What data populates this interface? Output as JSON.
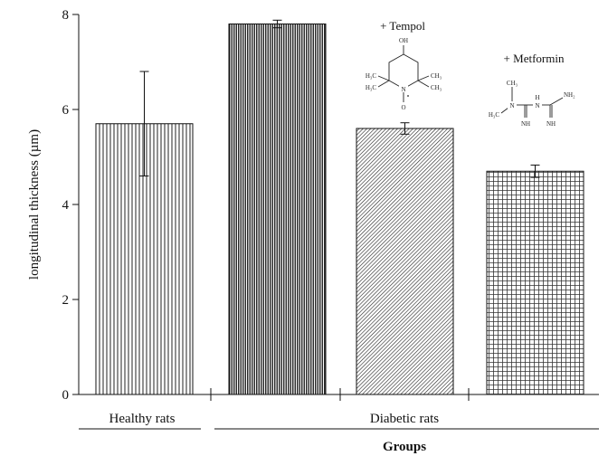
{
  "chart_data": {
    "type": "bar",
    "ylabel": "longitudinal thickness (µm)",
    "xlabel": "Groups",
    "ylim": [
      0,
      8
    ],
    "yticks": [
      "0",
      "2",
      "4",
      "6",
      "8"
    ],
    "grid": false,
    "bars": [
      {
        "value": 5.7,
        "error": 1.1,
        "pattern": "vertical-lines"
      },
      {
        "value": 7.8,
        "error": 0.08,
        "pattern": "dense-vertical-lines"
      },
      {
        "value": 5.6,
        "error": 0.12,
        "pattern": "diagonal-lines"
      },
      {
        "value": 4.7,
        "error": 0.13,
        "pattern": "crosshatch"
      }
    ],
    "groups": [
      {
        "label": "Healthy rats",
        "bars": [
          0
        ]
      },
      {
        "label": "Diabetic rats",
        "bars": [
          1,
          2,
          3
        ]
      }
    ],
    "annotations": [
      {
        "text": "+ Tempol",
        "bar": 2
      },
      {
        "text": "+ Metformin",
        "bar": 3
      }
    ],
    "structures": {
      "tempol": {
        "atoms": [
          "OH",
          "H₃C",
          "H₃C",
          "CH₃",
          "CH₃",
          "N",
          "O"
        ]
      },
      "metformin": {
        "atoms": [
          "CH₃",
          "H₃C",
          "N",
          "N",
          "H",
          "NH₂",
          "NH",
          "NH"
        ]
      }
    }
  }
}
